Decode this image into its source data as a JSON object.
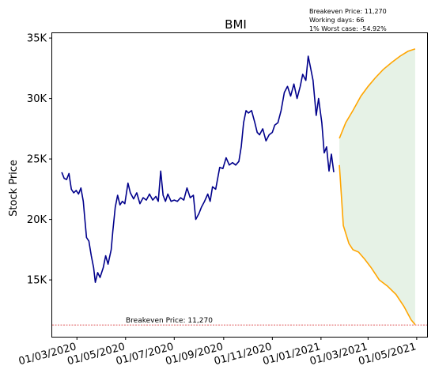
{
  "chart_data": {
    "type": "line",
    "title": "BMI",
    "ylabel": "Stock Price",
    "xlabel": "",
    "x_ticks": [
      "01/03/2020",
      "01/05/2020",
      "01/07/2020",
      "01/09/2020",
      "01/11/2020",
      "01/01/2021",
      "01/03/2021",
      "01/05/2021"
    ],
    "y_ticks": [
      "15K",
      "20K",
      "25K",
      "30K",
      "35K"
    ],
    "y_tick_values": [
      15000,
      20000,
      25000,
      30000,
      35000
    ],
    "ylim": [
      10300,
      35400
    ],
    "xlim": [
      "2020-01-30",
      "2021-05-14"
    ],
    "grid": false,
    "notes": [
      "Breakeven Price: 11,270",
      "Working days: 66",
      "1% Worst case: -54.92%"
    ],
    "breakeven": {
      "value": 11270,
      "label": "Breakeven Price: 11,270",
      "color": "#d62728"
    },
    "series": [
      {
        "role": "history",
        "color": "#00008b",
        "points": [
          [
            "2020-02-11",
            23900
          ],
          [
            "2020-02-14",
            23400
          ],
          [
            "2020-02-17",
            23300
          ],
          [
            "2020-02-20",
            23800
          ],
          [
            "2020-02-23",
            22500
          ],
          [
            "2020-02-26",
            22200
          ],
          [
            "2020-02-29",
            22400
          ],
          [
            "2020-03-03",
            22100
          ],
          [
            "2020-03-06",
            22600
          ],
          [
            "2020-03-09",
            21500
          ],
          [
            "2020-03-11",
            20000
          ],
          [
            "2020-03-13",
            18500
          ],
          [
            "2020-03-16",
            18200
          ],
          [
            "2020-03-19",
            17000
          ],
          [
            "2020-03-22",
            16000
          ],
          [
            "2020-03-24",
            14800
          ],
          [
            "2020-03-27",
            15600
          ],
          [
            "2020-03-30",
            15200
          ],
          [
            "2020-04-03",
            16000
          ],
          [
            "2020-04-06",
            17000
          ],
          [
            "2020-04-09",
            16300
          ],
          [
            "2020-04-13",
            17500
          ],
          [
            "2020-04-15",
            19000
          ],
          [
            "2020-04-18",
            21000
          ],
          [
            "2020-04-21",
            22000
          ],
          [
            "2020-04-24",
            21200
          ],
          [
            "2020-04-27",
            21500
          ],
          [
            "2020-04-30",
            21300
          ],
          [
            "2020-05-04",
            23000
          ],
          [
            "2020-05-07",
            22200
          ],
          [
            "2020-05-11",
            21700
          ],
          [
            "2020-05-15",
            22200
          ],
          [
            "2020-05-19",
            21300
          ],
          [
            "2020-05-23",
            21800
          ],
          [
            "2020-05-27",
            21600
          ],
          [
            "2020-05-31",
            22100
          ],
          [
            "2020-06-04",
            21600
          ],
          [
            "2020-06-08",
            21900
          ],
          [
            "2020-06-11",
            21500
          ],
          [
            "2020-06-14",
            24000
          ],
          [
            "2020-06-17",
            22000
          ],
          [
            "2020-06-20",
            21500
          ],
          [
            "2020-06-23",
            22100
          ],
          [
            "2020-06-27",
            21500
          ],
          [
            "2020-07-01",
            21600
          ],
          [
            "2020-07-05",
            21500
          ],
          [
            "2020-07-09",
            21800
          ],
          [
            "2020-07-13",
            21600
          ],
          [
            "2020-07-17",
            22600
          ],
          [
            "2020-07-21",
            21800
          ],
          [
            "2020-07-25",
            22000
          ],
          [
            "2020-07-28",
            20000
          ],
          [
            "2020-08-01",
            20500
          ],
          [
            "2020-08-04",
            21000
          ],
          [
            "2020-08-08",
            21500
          ],
          [
            "2020-08-12",
            22100
          ],
          [
            "2020-08-15",
            21500
          ],
          [
            "2020-08-18",
            22700
          ],
          [
            "2020-08-22",
            22500
          ],
          [
            "2020-08-27",
            24300
          ],
          [
            "2020-08-31",
            24200
          ],
          [
            "2020-09-04",
            25100
          ],
          [
            "2020-09-08",
            24500
          ],
          [
            "2020-09-12",
            24700
          ],
          [
            "2020-09-16",
            24500
          ],
          [
            "2020-09-20",
            24800
          ],
          [
            "2020-09-23",
            26000
          ],
          [
            "2020-09-26",
            28000
          ],
          [
            "2020-09-29",
            29000
          ],
          [
            "2020-10-02",
            28800
          ],
          [
            "2020-10-06",
            29000
          ],
          [
            "2020-10-10",
            28000
          ],
          [
            "2020-10-13",
            27200
          ],
          [
            "2020-10-16",
            27000
          ],
          [
            "2020-10-20",
            27500
          ],
          [
            "2020-10-24",
            26500
          ],
          [
            "2020-10-28",
            27000
          ],
          [
            "2020-11-01",
            27200
          ],
          [
            "2020-11-04",
            27800
          ],
          [
            "2020-11-08",
            28000
          ],
          [
            "2020-11-12",
            29000
          ],
          [
            "2020-11-16",
            30500
          ],
          [
            "2020-11-20",
            31000
          ],
          [
            "2020-11-24",
            30200
          ],
          [
            "2020-11-28",
            31200
          ],
          [
            "2020-12-02",
            30000
          ],
          [
            "2020-12-06",
            31000
          ],
          [
            "2020-12-09",
            32000
          ],
          [
            "2020-12-13",
            31500
          ],
          [
            "2020-12-16",
            33500
          ],
          [
            "2020-12-19",
            32500
          ],
          [
            "2020-12-22",
            31500
          ],
          [
            "2020-12-26",
            28600
          ],
          [
            "2020-12-29",
            30000
          ],
          [
            "2021-01-02",
            28000
          ],
          [
            "2021-01-05",
            25500
          ],
          [
            "2021-01-08",
            26000
          ],
          [
            "2021-01-11",
            24000
          ],
          [
            "2021-01-14",
            25400
          ],
          [
            "2021-01-17",
            23900
          ]
        ]
      },
      {
        "role": "projection-upper",
        "color": "#ffa500",
        "points": [
          [
            "2021-01-24",
            26700
          ],
          [
            "2021-02-01",
            28000
          ],
          [
            "2021-02-10",
            29000
          ],
          [
            "2021-02-20",
            30200
          ],
          [
            "2021-03-01",
            31000
          ],
          [
            "2021-03-10",
            31700
          ],
          [
            "2021-03-20",
            32400
          ],
          [
            "2021-03-31",
            33000
          ],
          [
            "2021-04-10",
            33500
          ],
          [
            "2021-04-20",
            33900
          ],
          [
            "2021-04-29",
            34100
          ]
        ]
      },
      {
        "role": "projection-lower",
        "color": "#ffa500",
        "points": [
          [
            "2021-01-24",
            24500
          ],
          [
            "2021-01-29",
            19500
          ],
          [
            "2021-02-05",
            18000
          ],
          [
            "2021-02-10",
            17500
          ],
          [
            "2021-02-17",
            17300
          ],
          [
            "2021-02-25",
            16700
          ],
          [
            "2021-03-05",
            16000
          ],
          [
            "2021-03-15",
            15000
          ],
          [
            "2021-03-25",
            14500
          ],
          [
            "2021-04-05",
            13800
          ],
          [
            "2021-04-15",
            12800
          ],
          [
            "2021-04-24",
            11700
          ],
          [
            "2021-04-29",
            11300
          ]
        ]
      }
    ],
    "fill_color": "#e6f2e6"
  }
}
